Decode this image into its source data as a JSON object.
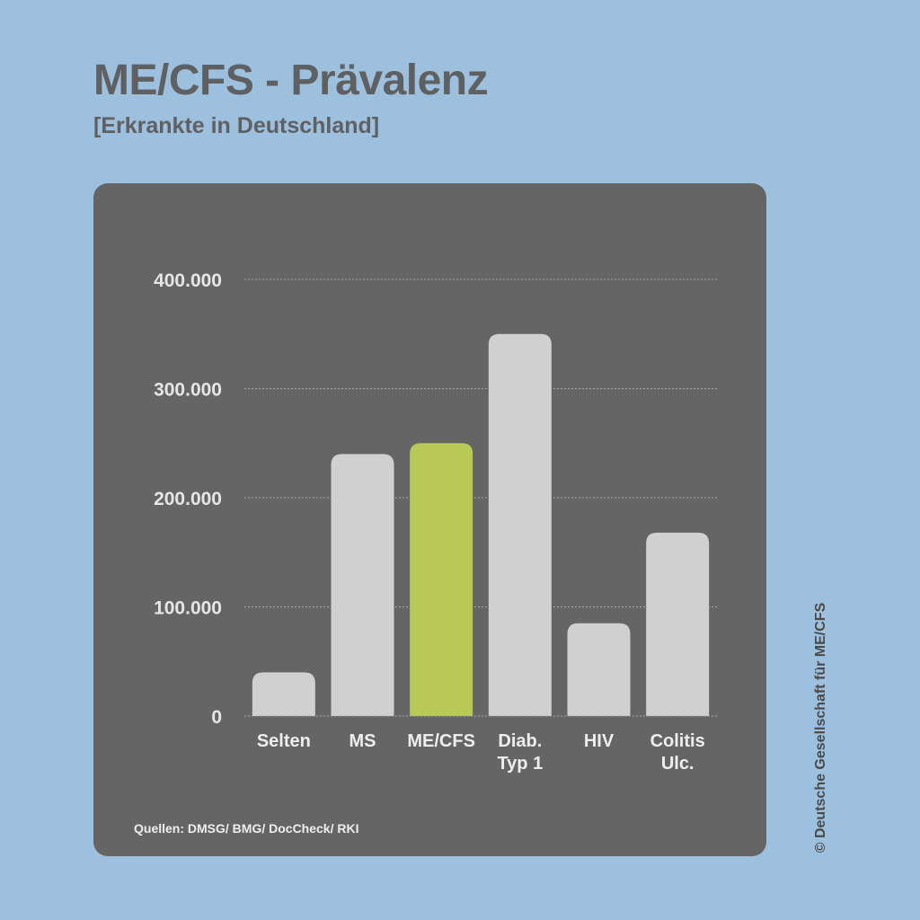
{
  "header": {
    "title": "ME/CFS - Prävalenz",
    "subtitle": "[Erkrankte in Deutschland]"
  },
  "footer": {
    "source": "Quellen: DMSG/ BMG/ DocCheck/ RKI",
    "credit": "© Deutsche Gesellschaft für ME/CFS"
  },
  "colors": {
    "background": "#9cc0de",
    "panel": "#656565",
    "bar": "#d0d0d0",
    "highlight": "#b8c955",
    "text": "#5f6062"
  },
  "chart_data": {
    "type": "bar",
    "title": "ME/CFS - Prävalenz",
    "subtitle": "[Erkrankte in Deutschland]",
    "categories": [
      [
        "Selten"
      ],
      [
        "MS"
      ],
      [
        "ME/CFS"
      ],
      [
        "Diab.",
        "Typ 1"
      ],
      [
        "HIV"
      ],
      [
        "Colitis",
        "Ulc."
      ]
    ],
    "values": [
      40000,
      240000,
      250000,
      350000,
      85000,
      168000
    ],
    "highlight_index": 2,
    "yticks": [
      0,
      100000,
      200000,
      300000,
      400000
    ],
    "ytick_labels": [
      "0",
      "100.000",
      "200.000",
      "300.000",
      "400.000"
    ],
    "ylim": [
      0,
      400000
    ],
    "grid": true,
    "xlabel": "",
    "ylabel": ""
  }
}
